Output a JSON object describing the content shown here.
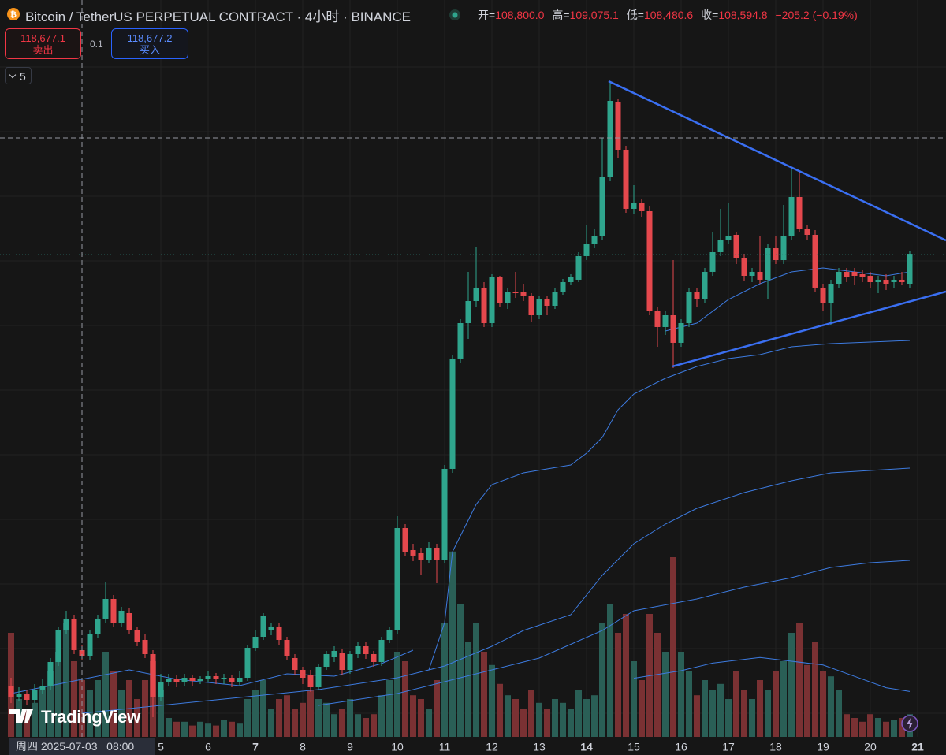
{
  "header": {
    "symbol": "Bitcoin / TetherUS PERPETUAL CONTRACT · 4小时 · BINANCE",
    "ohlc": [
      {
        "key": "开=",
        "value": "108,800.0"
      },
      {
        "key": "高=",
        "value": "109,075.1"
      },
      {
        "key": "低=",
        "value": "108,480.6"
      },
      {
        "key": "收=",
        "value": "108,594.8"
      }
    ],
    "change": "−205.2 (−0.19%)"
  },
  "trade": {
    "sell_price": "118,677.1",
    "sell_label": "卖出",
    "spread": "0.1",
    "buy_price": "118,677.2",
    "buy_label": "买入"
  },
  "indicators_count": "5",
  "watermark": "TradingView",
  "chart_data": {
    "type": "candlestick",
    "ohlc": [
      [
        107465,
        107670,
        107014,
        107158
      ],
      [
        107158,
        107424,
        107055,
        107260
      ],
      [
        107260,
        107363,
        106953,
        107096
      ],
      [
        107096,
        107506,
        107014,
        107363
      ],
      [
        107363,
        107629,
        107260,
        107465
      ],
      [
        107465,
        108183,
        107363,
        108080
      ],
      [
        108080,
        109003,
        107978,
        108900
      ],
      [
        108900,
        109413,
        108798,
        109208
      ],
      [
        109208,
        109310,
        108285,
        108388
      ],
      [
        108388,
        108531,
        108121,
        108224
      ],
      [
        108224,
        108900,
        108121,
        108798
      ],
      [
        108798,
        109310,
        108695,
        109208
      ],
      [
        109208,
        110171,
        109105,
        109720
      ],
      [
        109720,
        109823,
        109003,
        109105
      ],
      [
        109105,
        109515,
        109003,
        109413
      ],
      [
        109351,
        109474,
        108798,
        108900
      ],
      [
        108900,
        109003,
        108490,
        108593
      ],
      [
        108654,
        108798,
        108183,
        108285
      ],
      [
        108285,
        108388,
        106645,
        107158
      ],
      [
        107158,
        107773,
        107055,
        107568
      ],
      [
        107568,
        107773,
        107465,
        107629
      ],
      [
        107629,
        107732,
        107424,
        107547
      ],
      [
        107547,
        107773,
        107465,
        107670
      ],
      [
        107670,
        107752,
        107465,
        107588
      ],
      [
        107588,
        107711,
        107506,
        107629
      ],
      [
        107629,
        107834,
        107547,
        107711
      ],
      [
        107711,
        107793,
        107506,
        107629
      ],
      [
        107629,
        107773,
        107506,
        107670
      ],
      [
        107670,
        107732,
        107424,
        107547
      ],
      [
        107547,
        107834,
        107465,
        107670
      ],
      [
        107670,
        108531,
        107588,
        108449
      ],
      [
        108449,
        108900,
        108367,
        108736
      ],
      [
        108736,
        109351,
        108654,
        109269
      ],
      [
        108900,
        109105,
        108777,
        109003
      ],
      [
        109003,
        109105,
        108531,
        108654
      ],
      [
        108654,
        108736,
        108121,
        108244
      ],
      [
        108183,
        108285,
        107752,
        107875
      ],
      [
        107875,
        107957,
        107506,
        107670
      ],
      [
        107752,
        107875,
        107301,
        107424
      ],
      [
        107424,
        108039,
        107342,
        107957
      ],
      [
        107957,
        108367,
        107875,
        108285
      ],
      [
        108203,
        108490,
        108080,
        108367
      ],
      [
        108326,
        108408,
        107752,
        107875
      ],
      [
        107875,
        108367,
        107773,
        108285
      ],
      [
        108285,
        108593,
        108183,
        108490
      ],
      [
        108490,
        108593,
        108162,
        108285
      ],
      [
        108285,
        108367,
        107957,
        108080
      ],
      [
        108080,
        108736,
        107978,
        108654
      ],
      [
        108654,
        109003,
        108572,
        108900
      ],
      [
        108900,
        111873,
        108798,
        111565
      ],
      [
        111565,
        111668,
        110848,
        110950
      ],
      [
        110991,
        111155,
        110704,
        110848
      ],
      [
        110909,
        111053,
        110335,
        110745
      ],
      [
        110745,
        111196,
        110643,
        111053
      ],
      [
        111053,
        111155,
        110130,
        110745
      ],
      [
        110745,
        113205,
        110643,
        113103
      ],
      [
        113103,
        116075,
        113000,
        115973
      ],
      [
        115973,
        116998,
        115870,
        116895
      ],
      [
        116895,
        118228,
        116485,
        117469
      ],
      [
        117469,
        118884,
        117305,
        117818
      ],
      [
        117818,
        117961,
        116793,
        116895
      ],
      [
        116895,
        118166,
        116793,
        118084
      ],
      [
        118084,
        118125,
        117305,
        117408
      ],
      [
        117408,
        117818,
        117264,
        117715
      ],
      [
        117715,
        118228,
        117551,
        117674
      ],
      [
        117715,
        117920,
        117469,
        117592
      ],
      [
        117592,
        117674,
        116936,
        117100
      ],
      [
        117100,
        117592,
        116998,
        117510
      ],
      [
        117510,
        117613,
        117100,
        117346
      ],
      [
        117346,
        117797,
        117264,
        117715
      ],
      [
        117715,
        118043,
        117633,
        117961
      ],
      [
        117961,
        118166,
        117879,
        118084
      ],
      [
        118023,
        118740,
        117961,
        118638
      ],
      [
        118638,
        119458,
        118535,
        118945
      ],
      [
        118945,
        119355,
        118843,
        119150
      ],
      [
        119150,
        121713,
        119048,
        120688
      ],
      [
        120688,
        123189,
        120585,
        122676
      ],
      [
        122635,
        122738,
        121200,
        121405
      ],
      [
        121405,
        121508,
        119765,
        119868
      ],
      [
        119868,
        120483,
        119724,
        120011
      ],
      [
        120011,
        120134,
        119663,
        119806
      ],
      [
        119806,
        119929,
        117100,
        117203
      ],
      [
        117203,
        117305,
        116280,
        116793
      ],
      [
        116793,
        117203,
        116588,
        117100
      ],
      [
        117100,
        118535,
        115727,
        116383
      ],
      [
        116383,
        116998,
        116280,
        116895
      ],
      [
        116895,
        117818,
        116793,
        117715
      ],
      [
        117715,
        117818,
        117305,
        117510
      ],
      [
        117510,
        118330,
        117408,
        118228
      ],
      [
        118228,
        119253,
        118125,
        118740
      ],
      [
        118740,
        119868,
        118638,
        119048
      ],
      [
        119048,
        120011,
        118945,
        119150
      ],
      [
        119191,
        119253,
        118433,
        118576
      ],
      [
        118576,
        118699,
        118002,
        118125
      ],
      [
        118125,
        118330,
        117961,
        118228
      ],
      [
        118228,
        119150,
        117920,
        118023
      ],
      [
        118023,
        118945,
        117510,
        118843
      ],
      [
        118843,
        119150,
        118433,
        118535
      ],
      [
        118535,
        119970,
        118433,
        119150
      ],
      [
        119150,
        120893,
        119048,
        120175
      ],
      [
        120175,
        120831,
        119253,
        119355
      ],
      [
        119355,
        119458,
        119048,
        119191
      ],
      [
        119191,
        119314,
        117715,
        117818
      ],
      [
        117818,
        117920,
        117203,
        117408
      ],
      [
        117408,
        118023,
        116854,
        117920
      ],
      [
        117920,
        118330,
        117818,
        118228
      ],
      [
        118228,
        118330,
        117961,
        118084
      ],
      [
        118228,
        118330,
        117879,
        118125
      ],
      [
        118166,
        118289,
        117961,
        118084
      ],
      [
        118125,
        118228,
        117818,
        117961
      ],
      [
        117961,
        118125,
        117674,
        118023
      ],
      [
        118023,
        118166,
        117756,
        117920
      ],
      [
        117961,
        118125,
        117818,
        118023
      ],
      [
        118023,
        118228,
        117879,
        117961
      ],
      [
        117920,
        118781,
        117818,
        118699
      ]
    ],
    "volume": [
      55,
      20,
      15,
      18,
      25,
      35,
      45,
      60,
      40,
      30,
      25,
      30,
      45,
      35,
      25,
      30,
      20,
      30,
      40,
      25,
      10,
      8,
      8,
      6,
      8,
      7,
      6,
      9,
      8,
      7,
      20,
      25,
      30,
      15,
      20,
      22,
      15,
      18,
      25,
      20,
      18,
      12,
      15,
      20,
      12,
      10,
      12,
      22,
      30,
      45,
      40,
      22,
      20,
      15,
      30,
      60,
      98,
      70,
      50,
      60,
      45,
      38,
      28,
      22,
      20,
      15,
      25,
      18,
      15,
      20,
      18,
      15,
      25,
      20,
      22,
      60,
      70,
      55,
      65,
      40,
      30,
      65,
      55,
      45,
      95,
      45,
      35,
      22,
      30,
      25,
      28,
      20,
      35,
      25,
      20,
      30,
      25,
      35,
      40,
      55,
      60,
      38,
      50,
      35,
      32,
      25,
      12,
      10,
      8,
      12,
      10,
      8,
      9,
      10,
      12
    ],
    "up_color": "#2fa58d",
    "down_color": "#e5484d",
    "volume_up_color": "#2a5f56",
    "volume_down_color": "#7a3133",
    "xlim": [
      -1.4,
      118.6
    ],
    "ylim": [
      106132.5,
      125300
    ],
    "vlim": [
      0,
      100
    ],
    "xticks": [
      {
        "value": 19,
        "label": "5"
      },
      {
        "value": 25,
        "label": "6"
      },
      {
        "value": 31,
        "label": "7",
        "bold": true
      },
      {
        "value": 37,
        "label": "8"
      },
      {
        "value": 43,
        "label": "9"
      },
      {
        "value": 49,
        "label": "10"
      },
      {
        "value": 55,
        "label": "11"
      },
      {
        "value": 61,
        "label": "12"
      },
      {
        "value": 67,
        "label": "13"
      },
      {
        "value": 73,
        "label": "14",
        "bold": true
      },
      {
        "value": 79,
        "label": "15"
      },
      {
        "value": 85,
        "label": "16"
      },
      {
        "value": 91,
        "label": "17"
      },
      {
        "value": 97,
        "label": "18"
      },
      {
        "value": 103,
        "label": "19"
      },
      {
        "value": 109,
        "label": "20"
      },
      {
        "value": 115,
        "label": "21",
        "bold": true
      }
    ],
    "grid": true,
    "moving_averages": [
      {
        "color": "#3d7be0",
        "index": [
          0,
          9,
          15,
          21,
          29,
          35,
          41,
          47,
          51
        ],
        "values": [
          107260,
          107629,
          107875,
          107629,
          107465,
          107773,
          107711,
          108039,
          108388
        ]
      },
      {
        "color": "#3d7be0",
        "index": [
          83,
          87,
          91,
          95,
          99,
          103,
          107,
          111,
          114
        ],
        "values": [
          116690,
          116895,
          117510,
          117920,
          118228,
          118330,
          118228,
          118125,
          118228
        ]
      },
      {
        "color": "#3d7be0",
        "index": [
          53,
          55,
          56,
          59,
          61,
          65,
          71,
          73,
          75,
          77,
          79,
          83,
          87,
          91,
          95,
          99,
          104,
          109,
          114
        ],
        "values": [
          107875,
          109105,
          110950,
          112180,
          112693,
          113000,
          113205,
          113513,
          113923,
          114640,
          115050,
          115460,
          115768,
          115973,
          116075,
          116280,
          116362,
          116403,
          116444
        ]
      },
      {
        "color": "#3d7be0",
        "index": [
          9,
          19,
          29,
          39,
          49,
          55,
          61,
          65,
          71,
          75,
          79,
          83,
          87,
          93,
          99,
          104,
          109,
          114
        ],
        "values": [
          106748,
          106953,
          107158,
          107363,
          107670,
          107978,
          108490,
          108900,
          109310,
          110335,
          111155,
          111668,
          112078,
          112488,
          112795,
          113000,
          113062,
          113123
        ]
      },
      {
        "color": "#3d7be0",
        "index": [
          39,
          49,
          55,
          61,
          67,
          75,
          79,
          87,
          93,
          99,
          104,
          109,
          114
        ],
        "values": [
          106953,
          107260,
          107568,
          107875,
          108183,
          108900,
          109413,
          109720,
          110028,
          110274,
          110540,
          110663,
          110725
        ]
      }
    ],
    "volume_ma": {
      "color": "#3d7be0",
      "index": [
        79,
        85,
        89,
        95,
        99,
        103,
        107,
        111,
        114
      ],
      "values": [
        31,
        35,
        39,
        42,
        40,
        38,
        32,
        26,
        24
      ]
    },
    "trendlines": [
      {
        "color": "#3a6ff2",
        "index": [
          75.8,
          118.6
        ],
        "values": [
          123189,
          119048
        ]
      },
      {
        "color": "#3a6ff2",
        "index": [
          83.9,
          118.6
        ],
        "values": [
          115768,
          117715
        ]
      }
    ],
    "price_line": 118677.1,
    "price_line_color": "#2e7d72",
    "crosshair": {
      "index": 9,
      "price": 121713,
      "label": "周四 2025-07-03   08:00"
    }
  }
}
